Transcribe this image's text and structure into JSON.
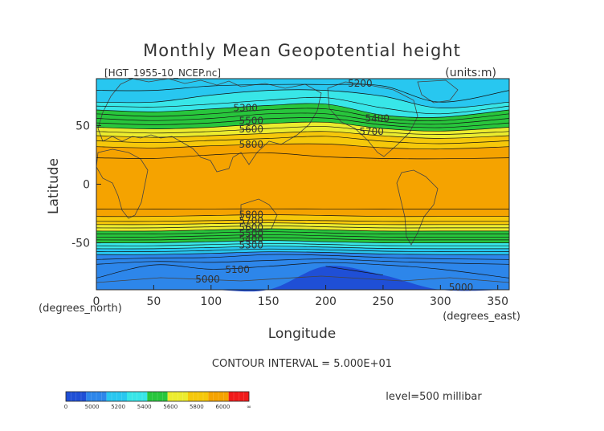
{
  "chart_data": {
    "type": "contour map",
    "title": "Monthly Mean Geopotential height",
    "source_label": "[HGT_1955-10_NCEP.nc]",
    "units_label": "(units:m)",
    "xlabel": "Longitude",
    "ylabel": "Latitude",
    "x_unit_label": "(degrees_east)",
    "y_unit_label": "(degrees_north)",
    "xlim": [
      0,
      360
    ],
    "ylim": [
      -90,
      90
    ],
    "x_ticks": [
      0,
      50,
      100,
      150,
      200,
      250,
      300,
      350
    ],
    "y_ticks": [
      50,
      0,
      -50
    ],
    "contour_interval_text": "CONTOUR INTERVAL = 5.000E+01",
    "level_text": "level=500 millibar",
    "color_levels": [
      {
        "from": 4900,
        "to": 5000,
        "color": "#1f4fd6"
      },
      {
        "from": 5000,
        "to": 5200,
        "color": "#2d86ea"
      },
      {
        "from": 5200,
        "to": 5300,
        "color": "#28c7f0"
      },
      {
        "from": 5300,
        "to": 5400,
        "color": "#38e6e8"
      },
      {
        "from": 5400,
        "to": 5600,
        "color": "#28c63c"
      },
      {
        "from": 5600,
        "to": 5700,
        "color": "#ecec2e"
      },
      {
        "from": 5700,
        "to": 5800,
        "color": "#f6c80a"
      },
      {
        "from": 5800,
        "to": 6000,
        "color": "#f5a300"
      }
    ],
    "profiles": [
      {
        "lat": 90,
        "values": [
          5200,
          5200,
          5200,
          5200,
          5200,
          5200,
          5200,
          5200
        ]
      },
      {
        "lat": 80,
        "values": [
          5250,
          5250,
          5280,
          5300,
          5300,
          5280,
          5230,
          5250
        ]
      },
      {
        "lat": 70,
        "values": [
          5300,
          5300,
          5330,
          5360,
          5380,
          5320,
          5250,
          5300
        ]
      },
      {
        "lat": 60,
        "values": [
          5450,
          5420,
          5450,
          5500,
          5500,
          5380,
          5350,
          5450
        ]
      },
      {
        "lat": 50,
        "values": [
          5580,
          5560,
          5580,
          5620,
          5640,
          5560,
          5520,
          5580
        ]
      },
      {
        "lat": 40,
        "values": [
          5720,
          5700,
          5720,
          5740,
          5760,
          5720,
          5690,
          5720
        ]
      },
      {
        "lat": 30,
        "values": [
          5820,
          5810,
          5830,
          5840,
          5830,
          5810,
          5800,
          5820
        ]
      },
      {
        "lat": 20,
        "values": [
          5860,
          5860,
          5870,
          5870,
          5860,
          5860,
          5860,
          5860
        ]
      },
      {
        "lat": 0,
        "values": [
          5870,
          5870,
          5880,
          5880,
          5870,
          5870,
          5870,
          5870
        ]
      },
      {
        "lat": -20,
        "values": [
          5860,
          5860,
          5860,
          5860,
          5860,
          5860,
          5860,
          5860
        ]
      },
      {
        "lat": -30,
        "values": [
          5780,
          5780,
          5770,
          5760,
          5770,
          5780,
          5780,
          5780
        ]
      },
      {
        "lat": -40,
        "values": [
          5600,
          5600,
          5580,
          5560,
          5580,
          5600,
          5600,
          5600
        ]
      },
      {
        "lat": -50,
        "values": [
          5400,
          5400,
          5380,
          5360,
          5380,
          5400,
          5400,
          5400
        ]
      },
      {
        "lat": -60,
        "values": [
          5200,
          5200,
          5180,
          5150,
          5160,
          5190,
          5200,
          5200
        ]
      },
      {
        "lat": -70,
        "values": [
          5080,
          5030,
          5060,
          5050,
          5000,
          5030,
          5060,
          5080
        ]
      },
      {
        "lat": -80,
        "values": [
          5050,
          5010,
          5020,
          5010,
          4960,
          4990,
          5020,
          5050
        ]
      },
      {
        "lat": -90,
        "values": [
          5040,
          5040,
          5040,
          5040,
          5040,
          5040,
          5040,
          5040
        ]
      }
    ],
    "profile_lons": [
      0,
      50,
      100,
      150,
      200,
      250,
      300,
      360
    ],
    "contour_labels": [
      {
        "text": "5200",
        "lon": 230,
        "lat": 86
      },
      {
        "text": "5300",
        "lon": 130,
        "lat": 65
      },
      {
        "text": "5400",
        "lon": 245,
        "lat": 56
      },
      {
        "text": "5500",
        "lon": 135,
        "lat": 54
      },
      {
        "text": "5600",
        "lon": 135,
        "lat": 47
      },
      {
        "text": "5700",
        "lon": 240,
        "lat": 45
      },
      {
        "text": "5800",
        "lon": 135,
        "lat": 34
      },
      {
        "text": "5800",
        "lon": 135,
        "lat": -26
      },
      {
        "text": "5700",
        "lon": 135,
        "lat": -31
      },
      {
        "text": "5600",
        "lon": 135,
        "lat": -37
      },
      {
        "text": "5500",
        "lon": 135,
        "lat": -42
      },
      {
        "text": "5400",
        "lon": 135,
        "lat": -47
      },
      {
        "text": "5300",
        "lon": 135,
        "lat": -52
      },
      {
        "text": "5100",
        "lon": 123,
        "lat": -73
      },
      {
        "text": "5000",
        "lon": 97,
        "lat": -81
      },
      {
        "text": "5000",
        "lon": 318,
        "lat": -88
      }
    ],
    "colorbar": {
      "colors": [
        "#1f4fd6",
        "#2d86ea",
        "#28c7f0",
        "#38e6e8",
        "#28c63c",
        "#ecec2e",
        "#f6c80a",
        "#f5a300",
        "#f01a1a"
      ],
      "tick_labels": [
        "0",
        "5000",
        "5200",
        "5400",
        "5600",
        "5800",
        "6000",
        "∞"
      ]
    }
  }
}
